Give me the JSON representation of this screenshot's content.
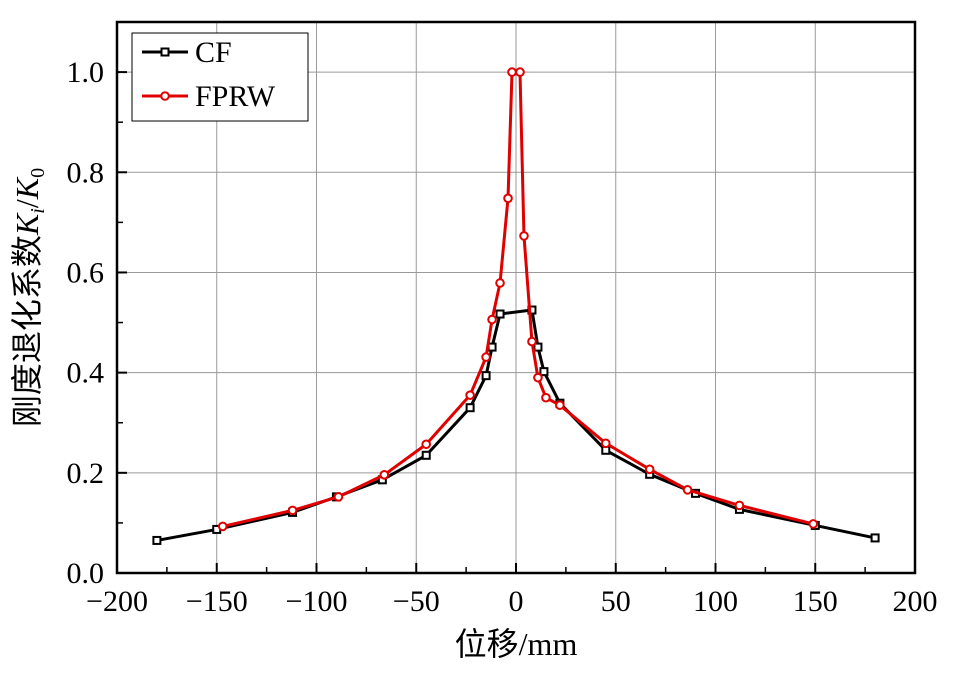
{
  "chart_data": {
    "type": "line",
    "xlabel": "位移/mm",
    "ylabel": {
      "prefix": "刚度退化系数",
      "var1": "K",
      "sub1": "i",
      "slash": "/",
      "var2": "K",
      "sub2": "0"
    },
    "xlim": [
      -200,
      200
    ],
    "ylim": [
      0.0,
      1.1
    ],
    "x_ticks": [
      -200,
      -150,
      -100,
      -50,
      0,
      50,
      100,
      150,
      200
    ],
    "x_tick_labels": [
      "−200",
      "−150",
      "−100",
      "−50",
      "0",
      "50",
      "100",
      "150",
      "200"
    ],
    "y_ticks": [
      0.0,
      0.2,
      0.4,
      0.6,
      0.8,
      1.0
    ],
    "y_tick_labels": [
      "0.0",
      "0.2",
      "0.4",
      "0.6",
      "0.8",
      "1.0"
    ],
    "grid": true,
    "legend_position": "top-left",
    "series": [
      {
        "name": "CF",
        "color": "#000000",
        "marker": "square",
        "x": [
          -180,
          -150,
          -112,
          -90,
          -67,
          -45,
          -23,
          -15,
          -12,
          -8,
          8,
          11,
          14,
          22,
          45,
          67,
          90,
          112,
          150,
          180
        ],
        "y": [
          0.065,
          0.087,
          0.121,
          0.152,
          0.186,
          0.235,
          0.33,
          0.394,
          0.451,
          0.517,
          0.525,
          0.451,
          0.402,
          0.339,
          0.245,
          0.197,
          0.159,
          0.127,
          0.095,
          0.07
        ]
      },
      {
        "name": "FPRW",
        "color": "#e00000",
        "marker": "circle",
        "x": [
          -147,
          -112,
          -89,
          -66,
          -45,
          -23,
          -15,
          -12,
          -8,
          -4,
          -2,
          2,
          4,
          8,
          11,
          15,
          22,
          45,
          67,
          86,
          112,
          149
        ],
        "y": [
          0.093,
          0.125,
          0.152,
          0.196,
          0.257,
          0.355,
          0.431,
          0.506,
          0.579,
          0.748,
          1.0,
          1.0,
          0.673,
          0.462,
          0.39,
          0.35,
          0.335,
          0.259,
          0.207,
          0.166,
          0.135,
          0.098
        ]
      }
    ]
  }
}
